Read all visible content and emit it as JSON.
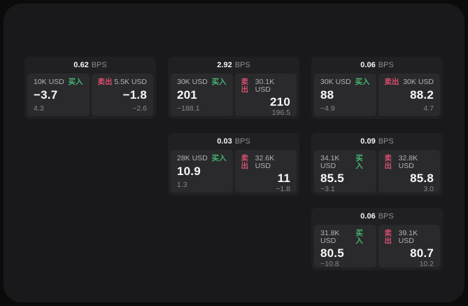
{
  "labels": {
    "bps": "BPS",
    "buy": "买入",
    "sell": "卖出"
  },
  "colors": {
    "buy": "#44b46d",
    "sell": "#d44f6e",
    "value": "#f8f8f9",
    "muted": "#87878b"
  },
  "cards": [
    {
      "bps": "0.62",
      "col": 0,
      "row": 0,
      "buy": {
        "notional": "10K USD",
        "value": "−3.7",
        "sub": "4.3"
      },
      "sell": {
        "notional": "5.5K USD",
        "value": "−1.8",
        "sub": "−2.6"
      }
    },
    {
      "bps": "2.92",
      "col": 1,
      "row": 0,
      "buy": {
        "notional": "30K USD",
        "value": "201",
        "sub": "−188.1"
      },
      "sell": {
        "notional": "30.1K USD",
        "value": "210",
        "sub": "196.5"
      }
    },
    {
      "bps": "0.06",
      "col": 2,
      "row": 0,
      "buy": {
        "notional": "30K USD",
        "value": "88",
        "sub": "−4.9"
      },
      "sell": {
        "notional": "30K USD",
        "value": "88.2",
        "sub": "4.7"
      }
    },
    {
      "bps": "0.03",
      "col": 1,
      "row": 1,
      "buy": {
        "notional": "28K USD",
        "value": "10.9",
        "sub": "1.3"
      },
      "sell": {
        "notional": "32.6K USD",
        "value": "11",
        "sub": "−1.8"
      }
    },
    {
      "bps": "0.09",
      "col": 2,
      "row": 1,
      "buy": {
        "notional": "34.1K USD",
        "value": "85.5",
        "sub": "−3.1"
      },
      "sell": {
        "notional": "32.8K USD",
        "value": "85.8",
        "sub": "3.0"
      }
    },
    {
      "bps": "0.06",
      "col": 2,
      "row": 2,
      "buy": {
        "notional": "31.8K USD",
        "value": "80.5",
        "sub": "−10.8"
      },
      "sell": {
        "notional": "39.1K USD",
        "value": "80.7",
        "sub": "10.2"
      }
    }
  ]
}
